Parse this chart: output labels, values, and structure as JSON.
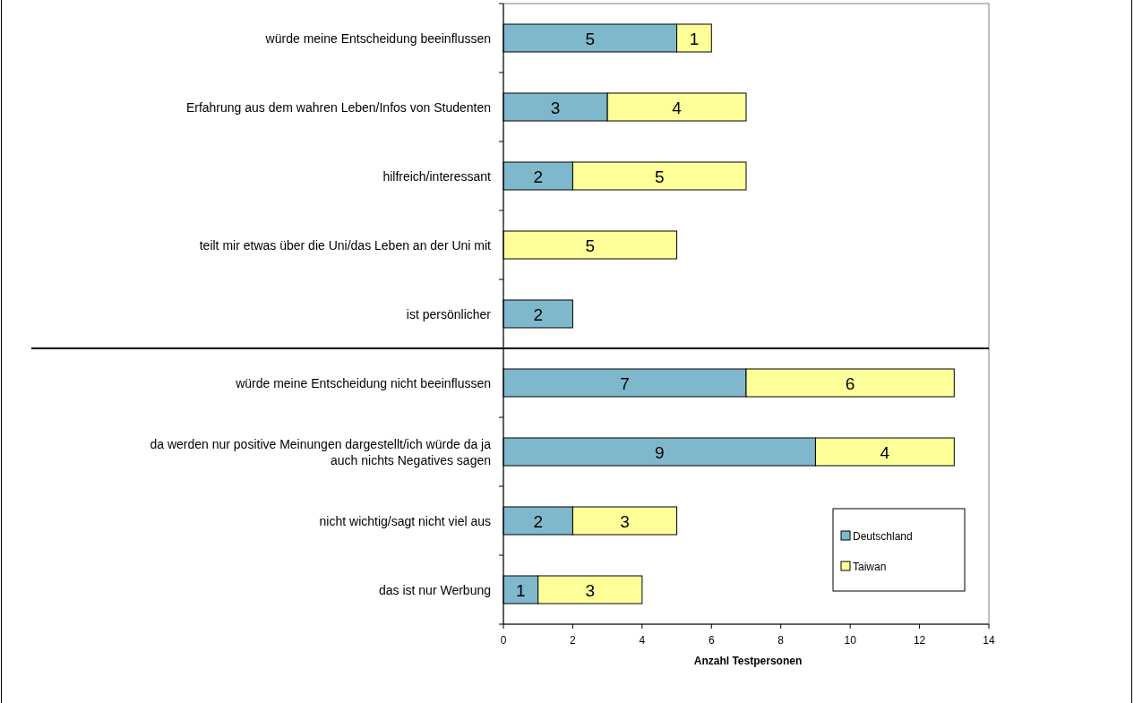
{
  "chart_data": {
    "type": "bar",
    "orientation": "horizontal",
    "stacked": true,
    "xlabel": "Anzahl Testpersonen",
    "categories": [
      "würde meine Entscheidung beeinflussen",
      "Erfahrung aus dem wahren Leben/Infos von Studenten",
      "hilfreich/interessant",
      "teilt mir etwas über die Uni/das Leben an der Uni mit",
      "ist persönlicher",
      "würde meine Entscheidung nicht beeinflussen",
      "da werden nur positive Meinungen dargestellt/ich würde da ja auch nichts Negatives sagen",
      "nicht wichtig/sagt nicht viel aus",
      "das ist nur Werbung"
    ],
    "series": [
      {
        "name": "Deutschland",
        "color": "#7fb8cc",
        "values": [
          5,
          3,
          2,
          null,
          2,
          7,
          9,
          2,
          1
        ]
      },
      {
        "name": "Taiwan",
        "color": "#ffff99",
        "values": [
          1,
          4,
          5,
          5,
          null,
          6,
          4,
          3,
          3
        ]
      }
    ],
    "xlim": [
      0,
      14
    ],
    "xticks": [
      0,
      2,
      4,
      6,
      8,
      10,
      12,
      14
    ],
    "data_labels": true,
    "grid": false,
    "legend": "bottom right"
  }
}
